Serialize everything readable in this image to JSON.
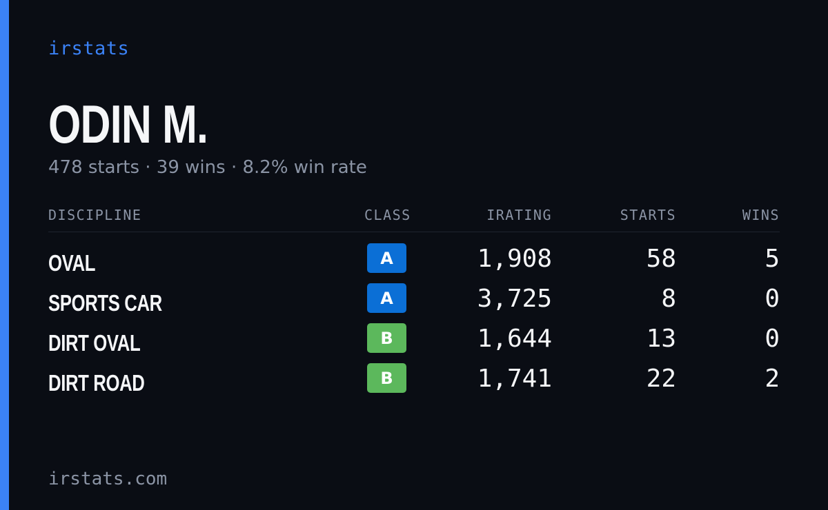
{
  "brand": "irstats",
  "driver": {
    "name": "ODIN M.",
    "starts": "478 starts",
    "wins": "39 wins",
    "win_rate": "8.2% win rate",
    "separator": "·"
  },
  "table": {
    "headers": {
      "discipline": "DISCIPLINE",
      "class": "CLASS",
      "irating": "IRATING",
      "starts": "STARTS",
      "wins": "WINS"
    },
    "rows": [
      {
        "discipline": "OVAL",
        "class": "A",
        "class_color": "#0b6fd6",
        "irating": "1,908",
        "starts": "58",
        "wins": "5"
      },
      {
        "discipline": "SPORTS CAR",
        "class": "A",
        "class_color": "#0b6fd6",
        "irating": "3,725",
        "starts": "8",
        "wins": "0"
      },
      {
        "discipline": "DIRT OVAL",
        "class": "B",
        "class_color": "#5cb85c",
        "irating": "1,644",
        "starts": "13",
        "wins": "0"
      },
      {
        "discipline": "DIRT ROAD",
        "class": "B",
        "class_color": "#5cb85c",
        "irating": "1,741",
        "starts": "22",
        "wins": "2"
      }
    ]
  },
  "footer": {
    "url": "irstats.com"
  },
  "colors": {
    "accent": "#3b82f6",
    "background": "#0a0d14",
    "muted": "#8b94a5",
    "text": "#f5f6f8"
  }
}
